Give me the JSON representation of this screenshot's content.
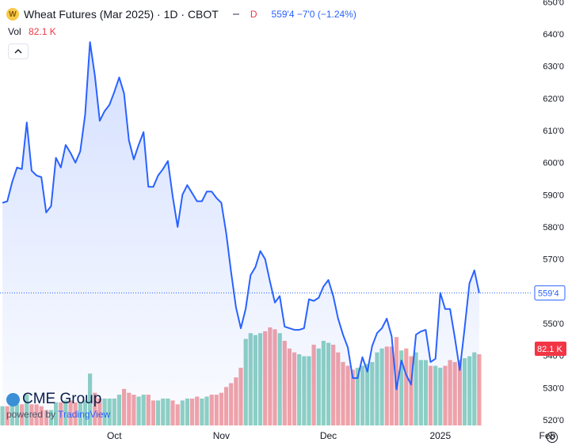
{
  "header": {
    "symbol_badge": "W",
    "title": "Wheat Futures (Mar 2025) · 1D · CBOT",
    "data_flag": "D",
    "quote": "559'4 −7'0 (−1.24%)",
    "vol_label": "Vol",
    "vol_value": "82.1 K",
    "collapse_icon": "chevron-up-icon"
  },
  "branding": {
    "name": "CME Group",
    "powered_by": "powered by",
    "provider": "TradingView"
  },
  "settings_icon": "gear-icon",
  "colors": {
    "price_line": "#2962ff",
    "volume_up": "#8fd1c3",
    "volume_down": "#f3a3a7",
    "last_price_label_border": "#2962ff",
    "last_volume_label_bg": "#f23645"
  },
  "chart_data": {
    "type": "area",
    "title": "Wheat Futures (Mar 2025) · 1D · CBOT",
    "x_tick_labels": [
      "Oct",
      "Nov",
      "Dec",
      "2025",
      "Feb"
    ],
    "y_tick_labels": [
      "520'0",
      "530'0",
      "540'0",
      "550'0",
      "560'0",
      "570'0",
      "580'0",
      "590'0",
      "600'0",
      "610'0",
      "620'0",
      "630'0",
      "640'0",
      "650'0"
    ],
    "ylim": [
      520,
      650
    ],
    "grid": false,
    "last_price_label": "559'4",
    "last_volume_label": "82.1 K",
    "month_anchors": {
      "Oct": 23,
      "Nov": 45,
      "Dec": 67,
      "2025": 90,
      "Feb": 112
    },
    "price": [
      587.5,
      588.0,
      594.0,
      598.5,
      598.0,
      612.5,
      597.5,
      596.0,
      595.5,
      584.5,
      586.5,
      601.5,
      598.5,
      605.5,
      603.0,
      600.0,
      603.5,
      615.0,
      637.5,
      627.0,
      613.0,
      616.0,
      618.0,
      622.0,
      626.5,
      621.5,
      607.0,
      601.0,
      605.5,
      609.5,
      592.5,
      592.5,
      596.0,
      598.0,
      600.5,
      589.5,
      580.0,
      590.0,
      593.0,
      590.5,
      588.0,
      588.0,
      591.0,
      591.0,
      589.0,
      587.5,
      578.0,
      566.0,
      555.0,
      548.5,
      554.5,
      565.0,
      567.5,
      572.5,
      570.0,
      563.0,
      556.5,
      558.5,
      549.0,
      548.5,
      548.0,
      548.0,
      548.5,
      557.5,
      557.0,
      558.0,
      561.5,
      563.5,
      558.5,
      551.5,
      546.5,
      542.5,
      533.0,
      533.0,
      539.5,
      535.0,
      543.0,
      547.0,
      548.5,
      551.5,
      546.0,
      529.5,
      538.5,
      534.0,
      531.0,
      546.5,
      547.5,
      548.0,
      538.0,
      539.0,
      559.5,
      554.5,
      554.5,
      545.5,
      535.5,
      548.5,
      562.5,
      566.5,
      559.5
    ],
    "volume": [
      10,
      10,
      11,
      11,
      11,
      16,
      11,
      11,
      10,
      8,
      8,
      12,
      12,
      13,
      13,
      12,
      12,
      13,
      27,
      17,
      14,
      14,
      14,
      14,
      16,
      19,
      17,
      16,
      15,
      16,
      16,
      13,
      13,
      14,
      14,
      13,
      11,
      13,
      14,
      14,
      15,
      14,
      15,
      16,
      16,
      17,
      20,
      22,
      25,
      30,
      45,
      48,
      47,
      48,
      49,
      51,
      50,
      48,
      44,
      40,
      38,
      37,
      36,
      36,
      42,
      40,
      44,
      43,
      42,
      38,
      33,
      31,
      29,
      30,
      31,
      32,
      33,
      38,
      40,
      41,
      41,
      46,
      39,
      40,
      36,
      38,
      34,
      34,
      31,
      31,
      30,
      31,
      34,
      33,
      34,
      35,
      36,
      38,
      37
    ],
    "volume_dir": [
      "up",
      "down",
      "up",
      "up",
      "down",
      "up",
      "down",
      "down",
      "down",
      "down",
      "up",
      "up",
      "down",
      "up",
      "down",
      "down",
      "up",
      "up",
      "up",
      "down",
      "down",
      "up",
      "up",
      "up",
      "up",
      "down",
      "down",
      "down",
      "up",
      "up",
      "down",
      "down",
      "up",
      "up",
      "up",
      "down",
      "down",
      "up",
      "up",
      "down",
      "down",
      "up",
      "up",
      "down",
      "down",
      "down",
      "down",
      "down",
      "down",
      "down",
      "up",
      "up",
      "up",
      "up",
      "down",
      "down",
      "down",
      "up",
      "down",
      "down",
      "down",
      "up",
      "up",
      "up",
      "down",
      "up",
      "up",
      "up",
      "down",
      "down",
      "down",
      "down",
      "down",
      "up",
      "up",
      "up",
      "up",
      "up",
      "up",
      "down",
      "down",
      "down",
      "up",
      "down",
      "down",
      "up",
      "up",
      "up",
      "down",
      "up",
      "up",
      "down",
      "down",
      "down",
      "down",
      "up",
      "up",
      "up",
      "down"
    ]
  }
}
